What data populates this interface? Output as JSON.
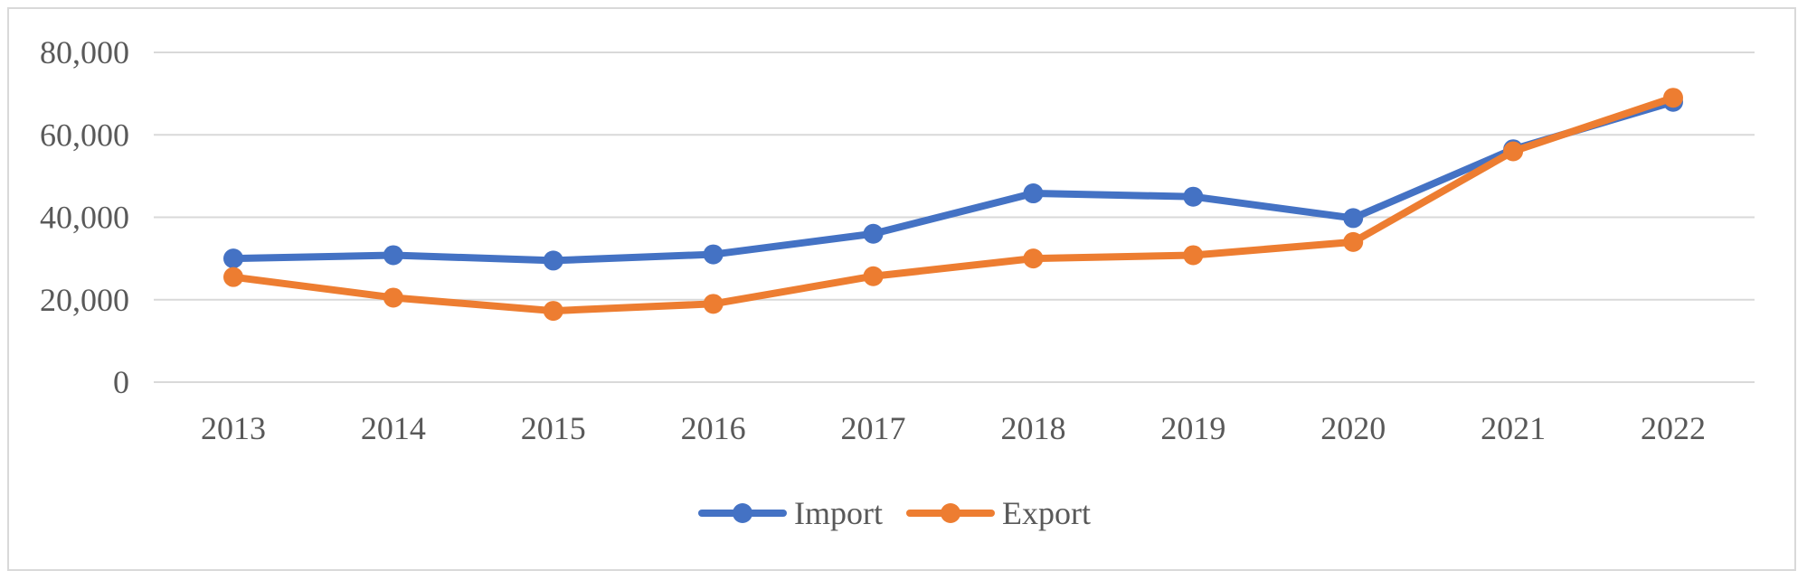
{
  "chart_data": {
    "type": "line",
    "title": "",
    "xlabel": "",
    "ylabel": "",
    "categories": [
      "2013",
      "2014",
      "2015",
      "2016",
      "2017",
      "2018",
      "2019",
      "2020",
      "2021",
      "2022"
    ],
    "ylim": [
      0,
      80000
    ],
    "yticks": [
      0,
      20000,
      40000,
      60000,
      80000
    ],
    "ytick_labels": [
      "0",
      "20,000",
      "40,000",
      "60,000",
      "80,000"
    ],
    "grid": true,
    "legend_position": "bottom-center",
    "series": [
      {
        "name": "Import",
        "color": "#4472C4",
        "values": [
          30000,
          30800,
          29500,
          31000,
          36000,
          45800,
          45000,
          39800,
          56500,
          68000
        ]
      },
      {
        "name": "Export",
        "color": "#ED7D31",
        "values": [
          25500,
          20500,
          17300,
          19000,
          25700,
          30000,
          30800,
          34000,
          56000,
          69000
        ]
      }
    ]
  }
}
